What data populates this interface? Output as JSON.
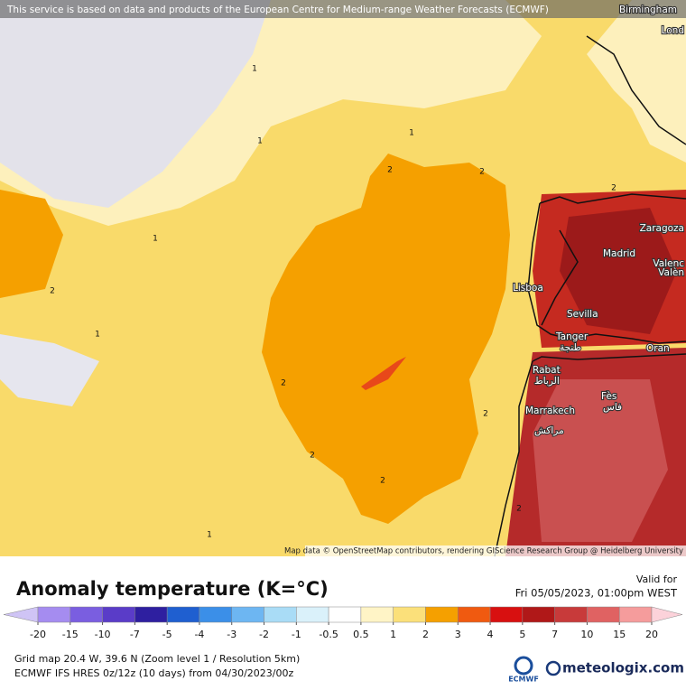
{
  "banner": "This service is based on data and products of the European Centre for Medium-range Weather Forecasts (ECMWF)",
  "map": {
    "cities": [
      "Birmingham",
      "Lond",
      "Zaragoza",
      "Madrid",
      "Valenc",
      "Valèn",
      "Lisboa",
      "Sevilla",
      "Tanger",
      "طنجة",
      "Oran",
      "Rabat",
      "الرباط",
      "Fès",
      "فاس",
      "Marrakech",
      "مراكش"
    ],
    "contour_labels": [
      "1",
      "1",
      "1",
      "1",
      "2",
      "2",
      "2",
      "2",
      "2",
      "2",
      "2",
      "1",
      "2",
      "2",
      "1"
    ],
    "attribution": "Map data © OpenStreetMap contributors, rendering GIScience Research Group @ Heidelberg University"
  },
  "legend": {
    "title": "Anomaly temperature (K=°C)",
    "valid_label": "Valid for",
    "valid_time": "Fri 05/05/2023, 01:00pm WEST",
    "ticks": [
      -20,
      -15,
      -10,
      -7,
      -5,
      -4,
      -3,
      -2,
      -1,
      -0.5,
      0.5,
      1,
      2,
      3,
      4,
      5,
      7,
      10,
      15,
      20
    ],
    "colors": [
      "#cfc4f5",
      "#a58cf0",
      "#7a5ee0",
      "#5a3cc8",
      "#2e1fa0",
      "#1f5fd0",
      "#3b8fe8",
      "#6db6f2",
      "#a9dcf6",
      "#daf1fa",
      "#ffffff",
      "#fff4c6",
      "#fbe07a",
      "#f5a000",
      "#f05a10",
      "#d81010",
      "#b01818",
      "#c83a3a",
      "#e06262",
      "#f59c9c",
      "#fcd2da"
    ]
  },
  "footer": {
    "grid": "Grid map 20.4 W, 39.6 N (Zoom level 1 / Resolution 5km)",
    "model": "ECMWF IFS HRES 0z/12z (10 days) from 04/30/2023/00z",
    "ecmwf": "ECMWF",
    "brand": "meteologix.com"
  }
}
